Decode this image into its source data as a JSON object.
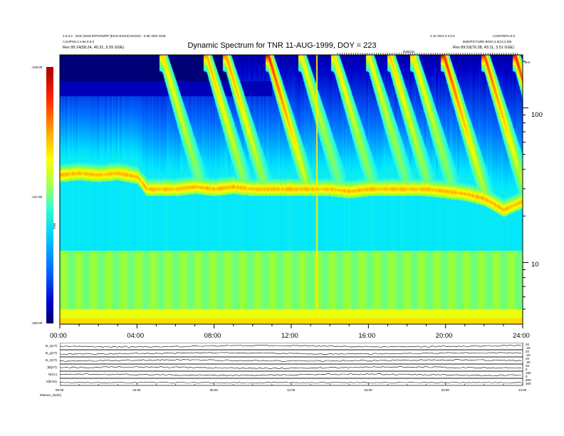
{
  "header": {
    "left_line1": "1.0.0.3 - SCE (GDD E/PHOS/PP (EGG-EGGS) EGGS) - 2.0E 2DO GGE",
    "left_line2": "A.DJPHS.2 e.8e.0.0.0",
    "left_line3": "Rex    95.14(58.24, 40.31, 5.55 GSE)",
    "right_line1": "1.10 VEO 2.2.0.0",
    "right_line2": "BSD/PICTURE BGIO.2.5(13.2.0)0",
    "right_line3": "Rex    89.53(76.38, 43.11, 3.51 GSE)",
    "corner_label": "LOSSTEP.s.0.0",
    "khz_label": "kHz",
    "mid_tick_label": "DSEGG"
  },
  "chart_data": {
    "type": "heatmap",
    "title": "Dynamic Spectrum for TNR 11-AUG-1999, DOY = 223",
    "xlabel": "",
    "ylabel": "",
    "colorbar": {
      "label": "TNR",
      "ticks": [
        "-125.00",
        "-137.50",
        "-150.00"
      ],
      "range": [
        -150,
        -125
      ],
      "colors": [
        "#000066",
        "#0000cc",
        "#0088ff",
        "#00ffff",
        "#66ff66",
        "#ffff00",
        "#ff8800",
        "#ff0000",
        "#aa0000"
      ]
    },
    "x_ticks": [
      "00:00",
      "04:00",
      "08:00",
      "12:00",
      "16:00",
      "20:00",
      "24:00"
    ],
    "x_range_hours": [
      0,
      24
    ],
    "y_scale": "log",
    "y_ticks": [
      100,
      10
    ],
    "y_range_khz": [
      4,
      220
    ],
    "background_level": 10,
    "bands": [
      {
        "name": "lower-green",
        "f_lo": 4,
        "f_hi": 12,
        "level": 0.55
      },
      {
        "name": "yellow-bottom",
        "f_lo": 4,
        "f_hi": 5,
        "level": 0.68
      }
    ],
    "plasma_line_khz": [
      [
        0,
        37
      ],
      [
        1,
        38
      ],
      [
        2,
        37
      ],
      [
        3,
        38
      ],
      [
        4,
        36
      ],
      [
        4.5,
        30
      ],
      [
        5,
        30
      ],
      [
        6,
        30
      ],
      [
        7,
        31
      ],
      [
        8,
        30
      ],
      [
        9,
        31
      ],
      [
        10,
        30
      ],
      [
        11,
        30
      ],
      [
        12,
        30
      ],
      [
        13,
        30
      ],
      [
        14,
        30
      ],
      [
        15,
        29
      ],
      [
        16,
        30
      ],
      [
        17,
        30
      ],
      [
        18,
        30
      ],
      [
        19,
        30
      ],
      [
        20,
        29
      ],
      [
        21,
        28
      ],
      [
        22,
        26
      ],
      [
        23,
        22
      ],
      [
        24,
        25
      ]
    ],
    "radio_bursts": [
      {
        "t": 5.3,
        "intensity": 0.6
      },
      {
        "t": 7.6,
        "intensity": 0.7
      },
      {
        "t": 8.6,
        "intensity": 0.75
      },
      {
        "t": 10.8,
        "intensity": 0.95
      },
      {
        "t": 12.5,
        "intensity": 0.55
      },
      {
        "t": 14.2,
        "intensity": 0.6
      },
      {
        "t": 16.0,
        "intensity": 0.55
      },
      {
        "t": 17.1,
        "intensity": 0.65
      },
      {
        "t": 18.3,
        "intensity": 0.6
      },
      {
        "t": 19.9,
        "intensity": 0.95
      },
      {
        "t": 22.0,
        "intensity": 0.9
      },
      {
        "t": 23.6,
        "intensity": 0.95
      }
    ],
    "vertical_spike_hour": 13.3
  },
  "bottom_panel": {
    "labels": [
      "B_x(nT)",
      "B_y(nT)",
      "B_z(nT)",
      "|B|(nT)",
      "N(/cc)",
      "V(km/s)"
    ],
    "right_values": [
      "20",
      "-20",
      "20",
      "-20",
      "20",
      "-20",
      "40",
      "0",
      "100",
      "0",
      "500",
      "300"
    ],
    "x_ticks": [
      "00:00",
      "04:00",
      "08:00",
      "12:00",
      "16:00",
      "20:00",
      "24:00"
    ],
    "footer": "Moiture_11(91)"
  }
}
